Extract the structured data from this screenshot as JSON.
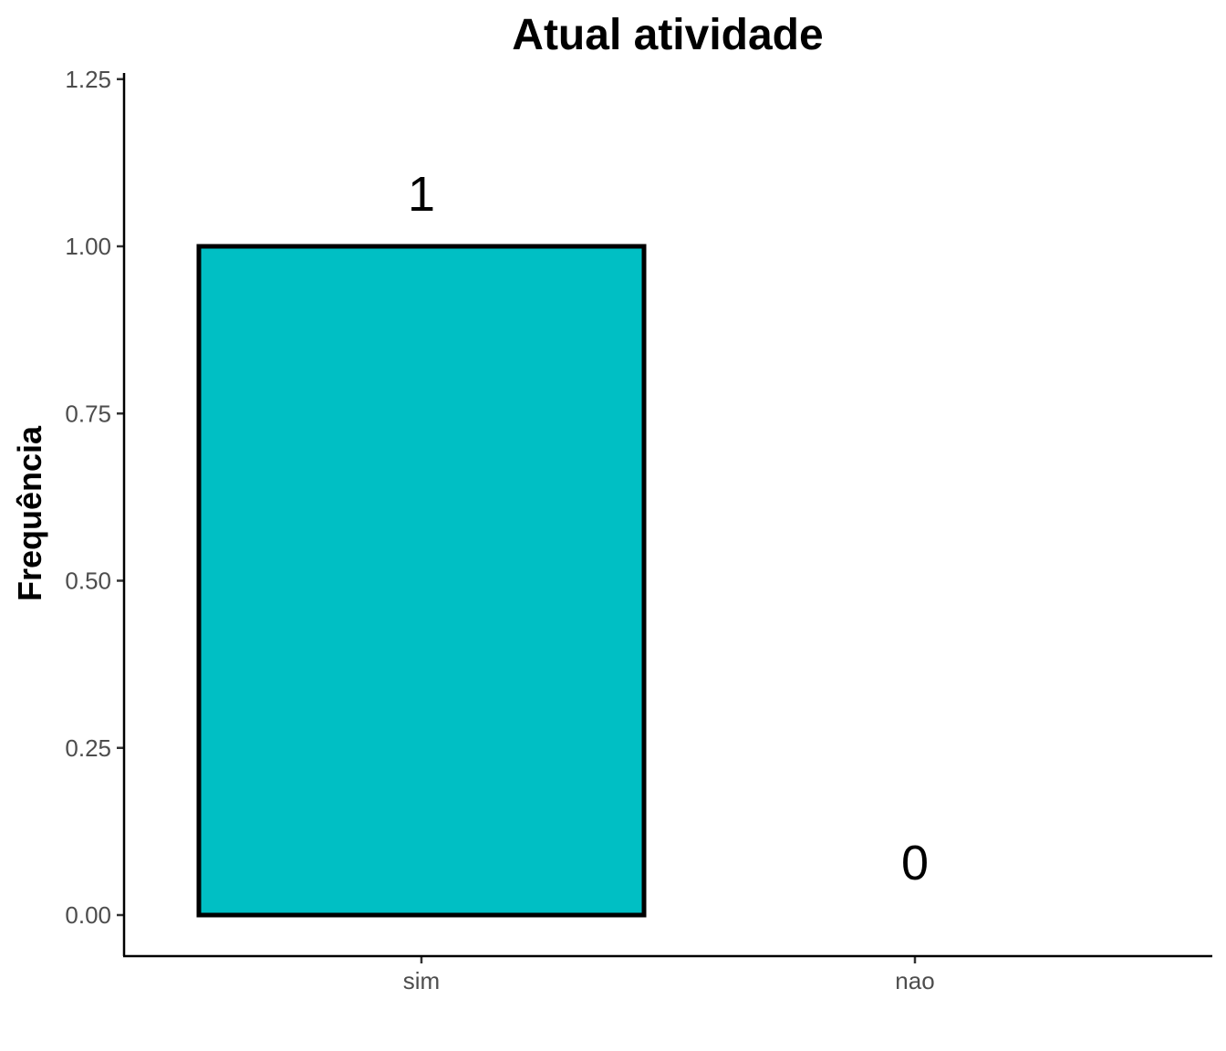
{
  "chart_data": {
    "type": "bar",
    "title": "Atual atividade",
    "xlabel": "",
    "ylabel": "Frequência",
    "categories": [
      "sim",
      "nao"
    ],
    "values": [
      1,
      0
    ],
    "data_labels": [
      "1",
      "0"
    ],
    "ylim": [
      0,
      1.25
    ],
    "yticks": [
      0,
      0.25,
      0.5,
      0.75,
      1.0,
      1.25
    ],
    "ytick_labels": [
      "0.00",
      "0.25",
      "0.50",
      "0.75",
      "1.00",
      "1.25"
    ],
    "bar_fill": "#00BFC4",
    "bar_outline": "#000000",
    "grid": false,
    "legend": "none"
  }
}
